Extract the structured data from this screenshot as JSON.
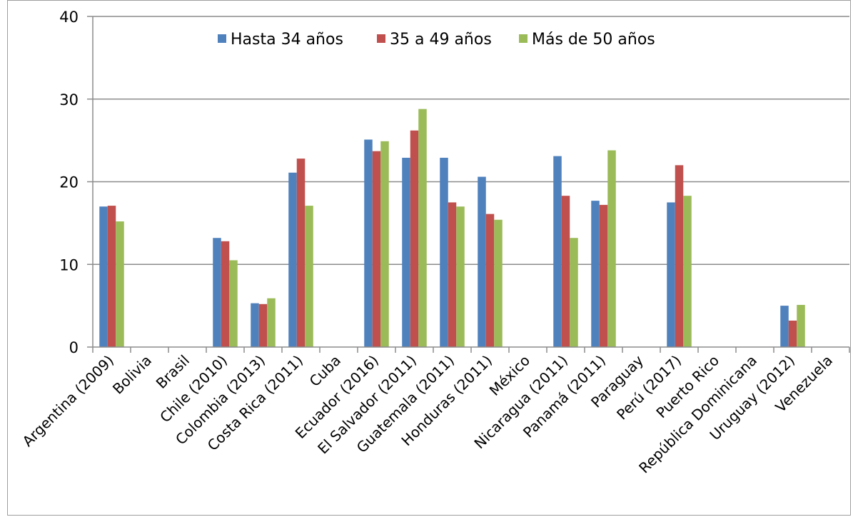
{
  "chart_data": {
    "type": "bar",
    "title": "",
    "xlabel": "",
    "ylabel": "",
    "ylim": [
      0,
      40
    ],
    "yticks": [
      "0",
      "10",
      "20",
      "30",
      "40"
    ],
    "grid": true,
    "legend_position": "top",
    "categories": [
      "Argentina (2009)",
      "Bolivia",
      "Brasil",
      "Chile (2010)",
      "Colombia (2013)",
      "Costa Rica (2011)",
      "Cuba",
      "Ecuador (2016)",
      "El Salvador (2011)",
      "Guatemala (2011)",
      "Honduras (2011)",
      "México",
      "Nicaragua (2011)",
      "Panamá (2011)",
      "Paraguay",
      "Perú  (2017)",
      "Puerto Rico",
      "República Dominicana",
      "Uruguay (2012)",
      "Venezuela"
    ],
    "series": [
      {
        "name": "Hasta 34 años",
        "color": "#4F81BD",
        "values": [
          17.0,
          null,
          null,
          13.2,
          5.3,
          21.1,
          null,
          25.1,
          22.9,
          22.9,
          20.6,
          null,
          23.1,
          17.7,
          null,
          17.5,
          null,
          null,
          5.0,
          null
        ]
      },
      {
        "name": "35 a 49 años",
        "color": "#C0504D",
        "values": [
          17.1,
          null,
          null,
          12.8,
          5.2,
          22.8,
          null,
          23.7,
          26.2,
          17.5,
          16.1,
          null,
          18.3,
          17.2,
          null,
          22.0,
          null,
          null,
          3.2,
          null
        ]
      },
      {
        "name": "Más de 50 años",
        "color": "#9BBB59",
        "values": [
          15.2,
          null,
          null,
          10.5,
          5.9,
          17.1,
          null,
          24.9,
          28.8,
          17.0,
          15.4,
          null,
          13.2,
          23.8,
          null,
          18.3,
          null,
          null,
          5.1,
          null
        ]
      }
    ]
  }
}
